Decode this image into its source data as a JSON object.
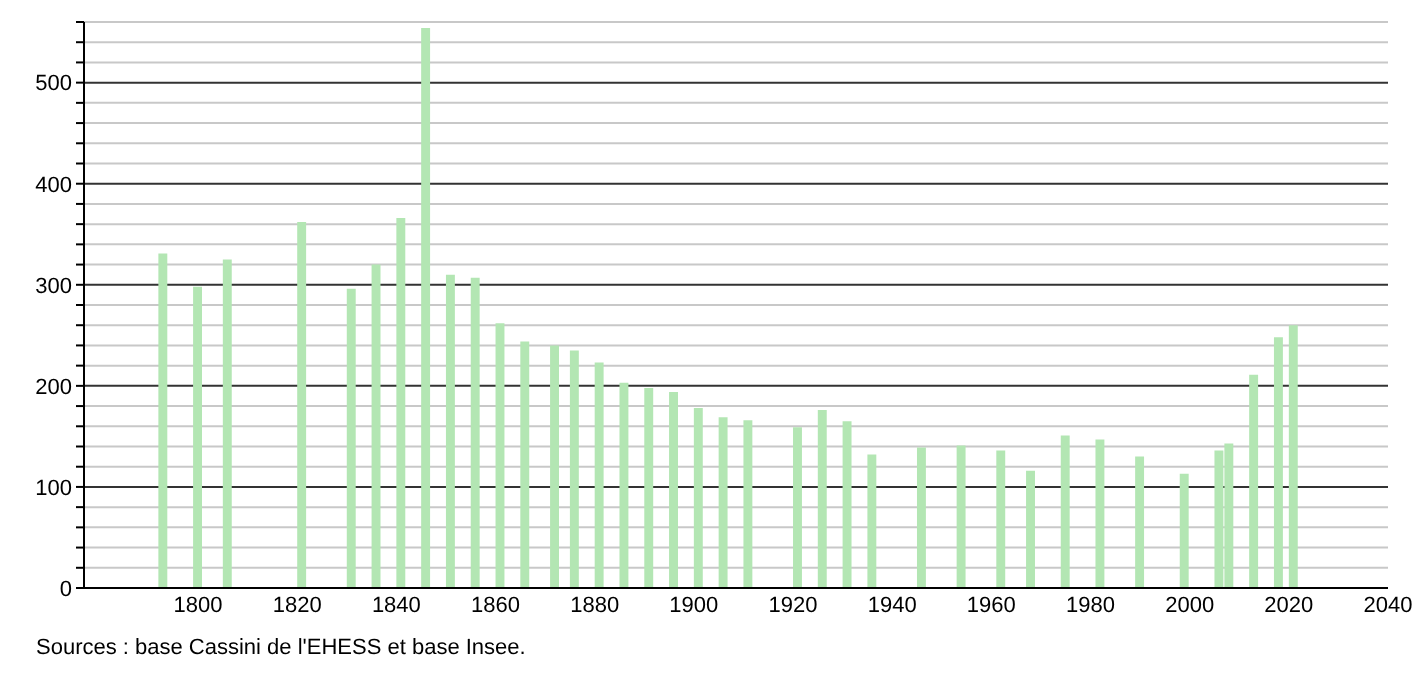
{
  "chart_data": {
    "type": "bar",
    "x": [
      1793,
      1800,
      1806,
      1821,
      1831,
      1836,
      1841,
      1846,
      1851,
      1856,
      1861,
      1866,
      1872,
      1876,
      1881,
      1886,
      1891,
      1896,
      1901,
      1906,
      1911,
      1921,
      1926,
      1931,
      1936,
      1946,
      1954,
      1962,
      1968,
      1975,
      1982,
      1990,
      1999,
      2006,
      2008,
      2013,
      2018,
      2021
    ],
    "values": [
      331,
      298,
      325,
      362,
      296,
      320,
      366,
      554,
      310,
      307,
      262,
      244,
      240,
      235,
      223,
      203,
      198,
      194,
      178,
      169,
      166,
      159,
      176,
      165,
      132,
      139,
      141,
      136,
      116,
      151,
      147,
      130,
      113,
      136,
      143,
      211,
      248,
      260
    ],
    "color": "#b3e6b3",
    "xlim": [
      1777,
      2040
    ],
    "xticks": [
      1800,
      1820,
      1840,
      1860,
      1880,
      1900,
      1920,
      1940,
      1960,
      1980,
      2000,
      2020,
      2040
    ],
    "ylim": [
      0,
      560
    ],
    "yticks": [
      0,
      {
        "value": 20,
        "label": null
      },
      {
        "value": 40,
        "label": null
      },
      {
        "value": 60,
        "label": null
      },
      {
        "value": 80,
        "label": null
      },
      100,
      {
        "value": 120,
        "label": null
      },
      {
        "value": 140,
        "label": null
      },
      {
        "value": 160,
        "label": null
      },
      {
        "value": 180,
        "label": null
      },
      200,
      {
        "value": 220,
        "label": null
      },
      {
        "value": 240,
        "label": null
      },
      {
        "value": 260,
        "label": null
      },
      {
        "value": 280,
        "label": null
      },
      300,
      {
        "value": 320,
        "label": null
      },
      {
        "value": 340,
        "label": null
      },
      {
        "value": 360,
        "label": null
      },
      {
        "value": 380,
        "label": null
      },
      400,
      {
        "value": 420,
        "label": null
      },
      {
        "value": 440,
        "label": null
      },
      {
        "value": 460,
        "label": null
      },
      {
        "value": 480,
        "label": null
      },
      500,
      {
        "value": 520,
        "label": null
      },
      {
        "value": 540,
        "label": null
      },
      {
        "value": 560,
        "label": null
      }
    ],
    "grid": true,
    "annotations": [
      "Sources : base Cassini de l'EHESS et base Insee."
    ]
  }
}
